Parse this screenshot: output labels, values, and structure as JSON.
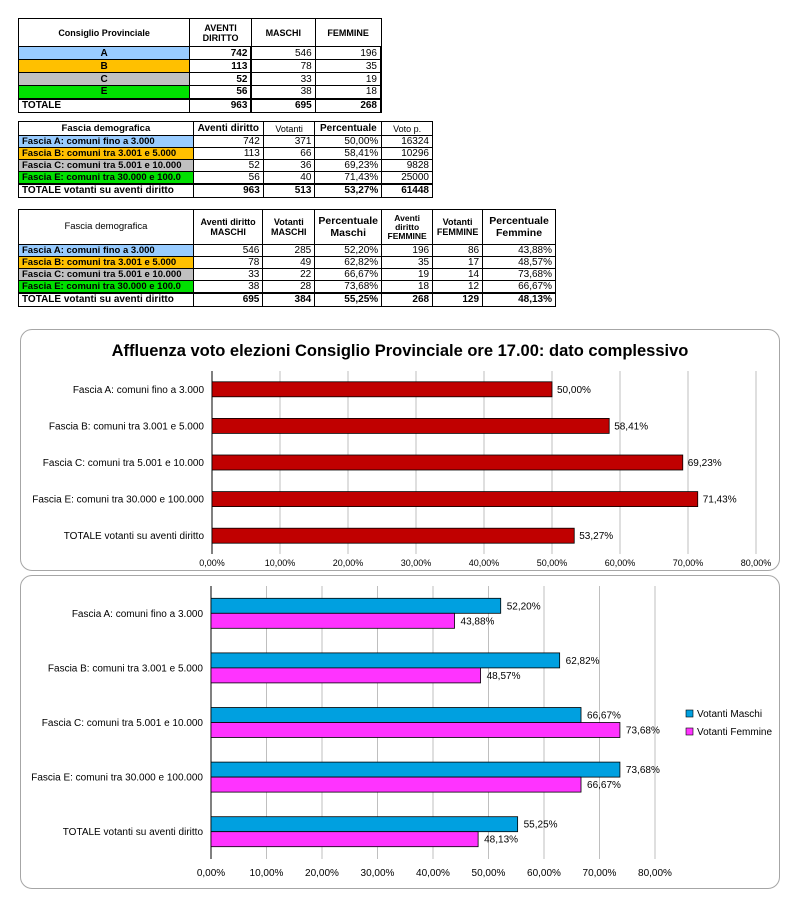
{
  "table1": {
    "headers": [
      "Consiglio Provinciale",
      "AVENTI DIRITTO",
      "MASCHI",
      "FEMMINE"
    ],
    "rows": [
      {
        "label": "A",
        "aventi": "742",
        "maschi": "546",
        "femmine": "196",
        "color": "#99ccff"
      },
      {
        "label": "B",
        "aventi": "113",
        "maschi": "78",
        "femmine": "35",
        "color": "#ffc000"
      },
      {
        "label": "C",
        "aventi": "52",
        "maschi": "33",
        "femmine": "19",
        "color": "#c0c0c0"
      },
      {
        "label": "E",
        "aventi": "56",
        "maschi": "38",
        "femmine": "18",
        "color": "#00e000"
      }
    ],
    "total": {
      "label": "TOTALE",
      "aventi": "963",
      "maschi": "695",
      "femmine": "268"
    }
  },
  "table2": {
    "headers": [
      "Fascia demografica",
      "Aventi diritto",
      "Votanti",
      "Percentuale",
      "Voto p."
    ],
    "rows": [
      {
        "label": "Fascia A: comuni fino a 3.000",
        "aventi": "742",
        "votanti": "371",
        "perc": "50,00%",
        "voto": "16324"
      },
      {
        "label": "Fascia B: comuni tra 3.001 e 5.000",
        "aventi": "113",
        "votanti": "66",
        "perc": "58,41%",
        "voto": "10296"
      },
      {
        "label": "Fascia C: comuni tra 5.001 e 10.000",
        "aventi": "52",
        "votanti": "36",
        "perc": "69,23%",
        "voto": "9828"
      },
      {
        "label": "Fascia E: comuni tra 30.000 e 100.0",
        "aventi": "56",
        "votanti": "40",
        "perc": "71,43%",
        "voto": "25000"
      }
    ],
    "total": {
      "label": "TOTALE votanti su aventi diritto",
      "aventi": "963",
      "votanti": "513",
      "perc": "53,27%",
      "voto": "61448"
    }
  },
  "table3": {
    "headers": [
      "Fascia demografica",
      "Aventi diritto MASCHI",
      "Votanti MASCHI",
      "Percentuale Maschi",
      "Aventi diritto FEMMINE",
      "Votanti FEMMINE",
      "Percentuale Femmine"
    ],
    "rows": [
      {
        "label": "Fascia A: comuni fino a 3.000",
        "am": "546",
        "vm": "285",
        "pm": "52,20%",
        "af": "196",
        "vf": "86",
        "pf": "43,88%"
      },
      {
        "label": "Fascia B: comuni tra 3.001 e 5.000",
        "am": "78",
        "vm": "49",
        "pm": "62,82%",
        "af": "35",
        "vf": "17",
        "pf": "48,57%"
      },
      {
        "label": "Fascia C: comuni tra 5.001 e 10.000",
        "am": "33",
        "vm": "22",
        "pm": "66,67%",
        "af": "19",
        "vf": "14",
        "pf": "73,68%"
      },
      {
        "label": "Fascia E: comuni tra 30.000 e 100.0",
        "am": "38",
        "vm": "28",
        "pm": "73,68%",
        "af": "18",
        "vf": "12",
        "pf": "66,67%"
      }
    ],
    "total": {
      "label": "TOTALE votanti su aventi diritto",
      "am": "695",
      "vm": "384",
      "pm": "55,25%",
      "af": "268",
      "vf": "129",
      "pf": "48,13%"
    }
  },
  "chart_data": [
    {
      "type": "bar",
      "orientation": "horizontal",
      "title": "Affluenza voto elezioni Consiglio Provinciale ore 17.00: dato complessivo",
      "categories": [
        "Fascia A: comuni fino a 3.000",
        "Fascia B: comuni tra 3.001 e 5.000",
        "Fascia C: comuni tra 5.001 e 10.000",
        "Fascia E: comuni tra 30.000 e 100.000",
        "TOTALE votanti su aventi diritto"
      ],
      "series": [
        {
          "values": [
            50.0,
            58.41,
            69.23,
            71.43,
            53.27
          ],
          "color": "#c00000"
        }
      ],
      "value_labels": [
        "50,00%",
        "58,41%",
        "69,23%",
        "71,43%",
        "53,27%"
      ],
      "xlim": [
        0,
        80
      ],
      "xticks": [
        "0,00%",
        "10,00%",
        "20,00%",
        "30,00%",
        "40,00%",
        "50,00%",
        "60,00%",
        "70,00%",
        "80,00%"
      ],
      "grid": true
    },
    {
      "type": "bar",
      "orientation": "horizontal",
      "title": "",
      "categories": [
        "Fascia A: comuni fino a 3.000",
        "Fascia B: comuni tra 3.001 e 5.000",
        "Fascia C: comuni tra 5.001 e 10.000",
        "Fascia E: comuni tra 30.000 e 100.000",
        "TOTALE votanti su aventi diritto"
      ],
      "series": [
        {
          "name": "Votanti Maschi",
          "values": [
            52.2,
            62.82,
            66.67,
            73.68,
            55.25
          ],
          "labels": [
            "52,20%",
            "62,82%",
            "66,67%",
            "73,68%",
            "55,25%"
          ],
          "color": "#00a0e0"
        },
        {
          "name": "Votanti Femmine",
          "values": [
            43.88,
            48.57,
            73.68,
            66.67,
            48.13
          ],
          "labels": [
            "43,88%",
            "48,57%",
            "73,68%",
            "66,67%",
            "48,13%"
          ],
          "color": "#ff33ff"
        }
      ],
      "xlim": [
        0,
        80
      ],
      "xticks": [
        "0,00%",
        "10,00%",
        "20,00%",
        "30,00%",
        "40,00%",
        "50,00%",
        "60,00%",
        "70,00%",
        "80,00%"
      ],
      "grid": true,
      "legend": "right"
    }
  ]
}
